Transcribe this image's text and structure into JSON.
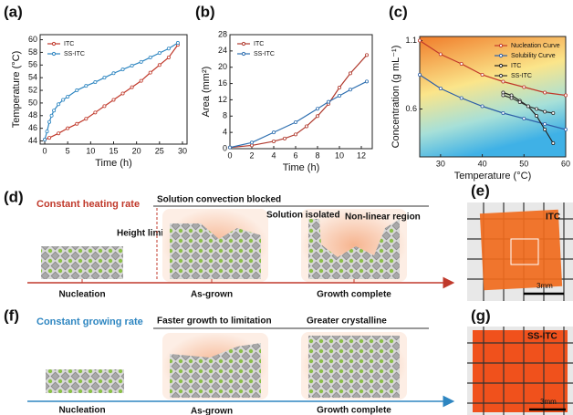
{
  "chart_data": [
    {
      "type": "line",
      "panel_label": "(a)",
      "xlabel": "Time (h)",
      "ylabel": "Temperature (°C)",
      "xlim": [
        -1,
        31
      ],
      "ylim": [
        43.5,
        60.8
      ],
      "xticks": [
        0,
        5,
        10,
        15,
        20,
        25,
        30
      ],
      "yticks": [
        44,
        46,
        48,
        50,
        52,
        54,
        56,
        58,
        60
      ],
      "legend": "upper left",
      "series": [
        {
          "name": "ITC",
          "color": "#c0392b",
          "x": [
            0,
            1,
            3,
            5,
            7,
            9,
            11,
            13,
            15,
            17,
            19,
            21,
            23,
            25,
            27,
            29
          ],
          "values": [
            44.2,
            44.5,
            45.2,
            46,
            46.7,
            47.5,
            48.5,
            49.5,
            50.5,
            51.5,
            52.5,
            53.5,
            54.8,
            56,
            57.2,
            59.2
          ]
        },
        {
          "name": "SS-ITC",
          "color": "#2e86c1",
          "x": [
            0,
            0.5,
            1,
            1.5,
            2,
            3,
            4,
            5,
            7,
            9,
            11,
            13,
            15,
            17,
            19,
            21,
            23,
            25,
            27,
            29
          ],
          "values": [
            44.2,
            45.5,
            47,
            48,
            48.8,
            49.8,
            50.5,
            51,
            52,
            52.7,
            53.3,
            54,
            54.7,
            55.3,
            55.9,
            56.5,
            57.2,
            57.9,
            58.6,
            59.5
          ]
        }
      ]
    },
    {
      "type": "line",
      "panel_label": "(b)",
      "xlabel": "Time (h)",
      "ylabel": "Area (mm²)",
      "xlim": [
        0,
        13
      ],
      "ylim": [
        0,
        28
      ],
      "xticks": [
        0,
        2,
        4,
        6,
        8,
        10,
        12
      ],
      "yticks": [
        0,
        4,
        8,
        12,
        16,
        20,
        24,
        28
      ],
      "legend": "upper left",
      "series": [
        {
          "name": "ITC",
          "color": "#b03a2e",
          "x": [
            0,
            2,
            4,
            5,
            6,
            7,
            8,
            9,
            10,
            11,
            12.5
          ],
          "values": [
            0.3,
            0.8,
            1.8,
            2.5,
            3.5,
            5.5,
            8,
            11,
            15,
            18.5,
            23
          ]
        },
        {
          "name": "SS-ITC",
          "color": "#2e6fb0",
          "x": [
            0,
            2,
            4,
            6,
            8,
            9,
            10,
            11,
            12.5
          ],
          "values": [
            0.3,
            1.5,
            4,
            6.5,
            9.8,
            11.5,
            13,
            14.5,
            16.5
          ]
        }
      ]
    },
    {
      "type": "line",
      "panel_label": "(c)",
      "xlabel": "Temperature (°C)",
      "ylabel": "Concentration (g mL⁻¹)",
      "xlim": [
        25,
        60
      ],
      "ylim": [
        0.25,
        1.13
      ],
      "xticks": [
        30,
        40,
        50,
        60
      ],
      "yticks": [
        0.6,
        1.1
      ],
      "legend": "upper right",
      "series": [
        {
          "name": "Nucleation Curve",
          "color": "#c0392b",
          "x": [
            25,
            30,
            35,
            40,
            45,
            50,
            55,
            60
          ],
          "values": [
            1.1,
            1.0,
            0.93,
            0.85,
            0.8,
            0.76,
            0.72,
            0.7
          ]
        },
        {
          "name": "Solubility Curve",
          "color": "#2e5fa8",
          "x": [
            25,
            30,
            35,
            40,
            45,
            50,
            55,
            60
          ],
          "values": [
            0.85,
            0.75,
            0.68,
            0.62,
            0.57,
            0.53,
            0.49,
            0.45
          ]
        },
        {
          "name": "ITC",
          "color": "#222222",
          "x": [
            45,
            47,
            49,
            51,
            53,
            55,
            57
          ],
          "values": [
            0.72,
            0.7,
            0.66,
            0.62,
            0.55,
            0.45,
            0.35
          ]
        },
        {
          "name": "SS-ITC",
          "color": "#333333",
          "x": [
            45,
            47,
            49,
            51,
            53,
            55,
            57
          ],
          "values": [
            0.7,
            0.68,
            0.65,
            0.62,
            0.6,
            0.58,
            0.57
          ]
        }
      ]
    }
  ],
  "diagram_d": {
    "label": "(d)",
    "title": "Constant heating rate",
    "top_note": "Solution convection blocked",
    "height_note": "Height limitation",
    "isolated_note": "Solution isolated",
    "nonlinear_note": "Non-linear region",
    "stages": [
      "Nucleation",
      "As-grown",
      "Growth complete"
    ]
  },
  "photo_e": {
    "label": "(e)",
    "sample": "ITC",
    "scale": "3mm"
  },
  "diagram_f": {
    "label": "(f)",
    "title": "Constant growing rate",
    "mid_note": "Faster growth to limitation",
    "right_note": "Greater crystalline",
    "stages": [
      "Nucleation",
      "As-grown",
      "Growth complete"
    ]
  },
  "photo_g": {
    "label": "(g)",
    "sample": "SS-ITC",
    "scale": "3mm"
  }
}
